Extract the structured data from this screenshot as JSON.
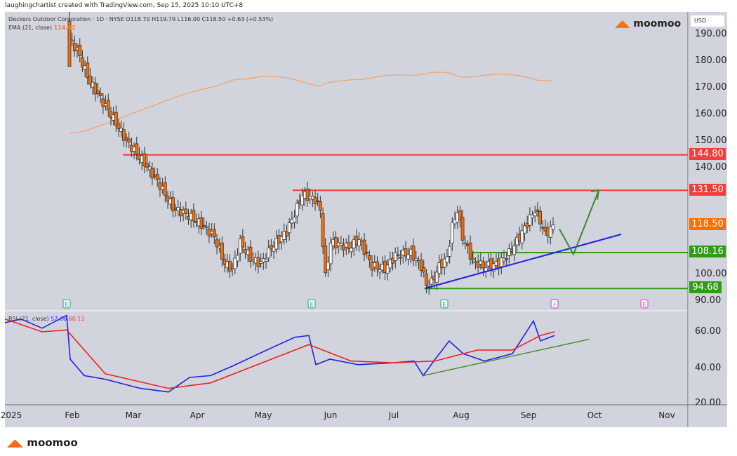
{
  "header": {
    "credit": "laughingchartist created with TradingView.com, Sep 15, 2025 10:10 UTC+8",
    "symbol_line": "Deckers Outdoor Corporation · 1D · NYSE  O118.70  H119.79  L116.00  C118.50  +0.63 (+0.53%)",
    "ema_label": "EMA (21, close)",
    "ema_value": "114.82"
  },
  "brand": {
    "name": "moomoo",
    "color": "#ff6a13"
  },
  "price_axis": {
    "currency": "USD",
    "ticks": [
      "190.00",
      "180.00",
      "170.00",
      "160.00",
      "150.00",
      "140.00",
      "100.00",
      "90.00"
    ],
    "tags": [
      {
        "value": "144.80",
        "color": "#f23d3d"
      },
      {
        "value": "131.50",
        "color": "#f23d3d"
      },
      {
        "value": "118.50",
        "color": "#ff6d00"
      },
      {
        "value": "108.16",
        "color": "#2e9c14"
      },
      {
        "value": "94.68",
        "color": "#2e9c14"
      }
    ]
  },
  "rsi": {
    "label": "RSI (21, close)",
    "value": "57.66",
    "ma_value": "60.11",
    "ticks": [
      "60.00",
      "40.00",
      "20.00"
    ]
  },
  "time_axis": {
    "months": [
      "2025",
      "Feb",
      "Mar",
      "Apr",
      "May",
      "Jun",
      "Jul",
      "Aug",
      "Sep",
      "Oct",
      "Nov"
    ]
  },
  "events": [
    {
      "type": "earnings",
      "label": "E"
    },
    {
      "type": "earnings",
      "label": "E"
    },
    {
      "type": "earnings",
      "label": "E"
    },
    {
      "type": "dividend",
      "label": "⚡"
    },
    {
      "type": "earnings-upcoming",
      "label": "E"
    }
  ],
  "chart_data": {
    "type": "candlestick",
    "title": "Deckers Outdoor Corporation · 1D · NYSE",
    "ylabel": "USD",
    "ylim": [
      88,
      195
    ],
    "last": {
      "open": 118.7,
      "high": 119.79,
      "low": 116.0,
      "close": 118.5,
      "change": 0.63,
      "change_pct": 0.53
    },
    "overlays": {
      "ema21_last": 114.82
    },
    "horizontal_levels": [
      144.8,
      131.5,
      108.16,
      94.68
    ],
    "annotations": [
      "Resistance 144.80",
      "Resistance 131.50",
      "Support 108.16",
      "Support 94.68",
      "Rising trendline from Jul low",
      "Projected V-bounce arrow to 131.50"
    ],
    "approx_closes_by_month": {
      "Jan-end": 183,
      "Feb": 163,
      "Mar": 118,
      "Apr": 104,
      "May": 128,
      "Jun": 108,
      "Jul": 98,
      "Aug": 104,
      "Sep": 118.5
    },
    "rsi": {
      "period": 21,
      "last": 57.66,
      "ma_last": 60.11,
      "ylim": [
        20,
        75
      ]
    }
  }
}
